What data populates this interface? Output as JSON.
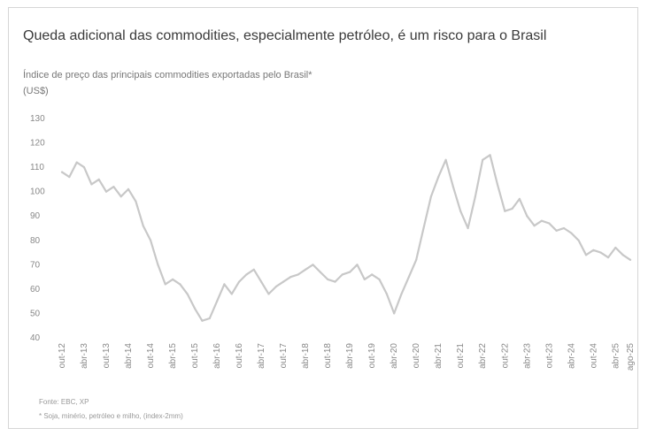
{
  "chart_data": {
    "type": "line",
    "title": "Queda adicional das commodities, especialmente petróleo, é um risco para o Brasil",
    "subtitle": "Índice de preço das principais commodities exportadas pelo Brasil*",
    "unit": "(US$)",
    "ylim": [
      40,
      130
    ],
    "yticks": [
      130,
      120,
      110,
      100,
      90,
      80,
      70,
      60,
      50,
      40
    ],
    "xlim": [
      "2012-10",
      "2025-08"
    ],
    "xticks": [
      {
        "date": "2012-10",
        "label": "out-12"
      },
      {
        "date": "2013-04",
        "label": "abr-13"
      },
      {
        "date": "2013-10",
        "label": "out-13"
      },
      {
        "date": "2014-04",
        "label": "abr-14"
      },
      {
        "date": "2014-10",
        "label": "out-14"
      },
      {
        "date": "2015-04",
        "label": "abr-15"
      },
      {
        "date": "2015-10",
        "label": "out-15"
      },
      {
        "date": "2016-04",
        "label": "abr-16"
      },
      {
        "date": "2016-10",
        "label": "out-16"
      },
      {
        "date": "2017-04",
        "label": "abr-17"
      },
      {
        "date": "2017-10",
        "label": "out-17"
      },
      {
        "date": "2018-04",
        "label": "abr-18"
      },
      {
        "date": "2018-10",
        "label": "out-18"
      },
      {
        "date": "2019-04",
        "label": "abr-19"
      },
      {
        "date": "2019-10",
        "label": "out-19"
      },
      {
        "date": "2020-04",
        "label": "abr-20"
      },
      {
        "date": "2020-10",
        "label": "out-20"
      },
      {
        "date": "2021-04",
        "label": "abr-21"
      },
      {
        "date": "2021-10",
        "label": "out-21"
      },
      {
        "date": "2022-04",
        "label": "abr-22"
      },
      {
        "date": "2022-10",
        "label": "out-22"
      },
      {
        "date": "2023-04",
        "label": "abr-23"
      },
      {
        "date": "2023-10",
        "label": "out-23"
      },
      {
        "date": "2024-04",
        "label": "abr-24"
      },
      {
        "date": "2024-10",
        "label": "out-24"
      },
      {
        "date": "2025-04",
        "label": "abr-25"
      },
      {
        "date": "2025-08",
        "label": "ago-25"
      }
    ],
    "grid": false,
    "legend": "none",
    "series": [
      {
        "color": "#c8c8c8",
        "points": [
          [
            "2012-10",
            108
          ],
          [
            "2012-12",
            106
          ],
          [
            "2013-02",
            112
          ],
          [
            "2013-04",
            110
          ],
          [
            "2013-06",
            103
          ],
          [
            "2013-08",
            105
          ],
          [
            "2013-10",
            100
          ],
          [
            "2013-12",
            102
          ],
          [
            "2014-02",
            98
          ],
          [
            "2014-04",
            101
          ],
          [
            "2014-06",
            96
          ],
          [
            "2014-08",
            86
          ],
          [
            "2014-10",
            80
          ],
          [
            "2014-12",
            70
          ],
          [
            "2015-02",
            62
          ],
          [
            "2015-04",
            64
          ],
          [
            "2015-06",
            62
          ],
          [
            "2015-08",
            58
          ],
          [
            "2015-10",
            52
          ],
          [
            "2015-12",
            47
          ],
          [
            "2016-02",
            48
          ],
          [
            "2016-04",
            55
          ],
          [
            "2016-06",
            62
          ],
          [
            "2016-08",
            58
          ],
          [
            "2016-10",
            63
          ],
          [
            "2016-12",
            66
          ],
          [
            "2017-02",
            68
          ],
          [
            "2017-04",
            63
          ],
          [
            "2017-06",
            58
          ],
          [
            "2017-08",
            61
          ],
          [
            "2017-10",
            63
          ],
          [
            "2017-12",
            65
          ],
          [
            "2018-02",
            66
          ],
          [
            "2018-04",
            68
          ],
          [
            "2018-06",
            70
          ],
          [
            "2018-08",
            67
          ],
          [
            "2018-10",
            64
          ],
          [
            "2018-12",
            63
          ],
          [
            "2019-02",
            66
          ],
          [
            "2019-04",
            67
          ],
          [
            "2019-06",
            70
          ],
          [
            "2019-08",
            64
          ],
          [
            "2019-10",
            66
          ],
          [
            "2019-12",
            64
          ],
          [
            "2020-02",
            58
          ],
          [
            "2020-04",
            50
          ],
          [
            "2020-06",
            58
          ],
          [
            "2020-08",
            65
          ],
          [
            "2020-10",
            72
          ],
          [
            "2020-12",
            85
          ],
          [
            "2021-02",
            98
          ],
          [
            "2021-04",
            106
          ],
          [
            "2021-06",
            113
          ],
          [
            "2021-08",
            102
          ],
          [
            "2021-10",
            92
          ],
          [
            "2021-12",
            85
          ],
          [
            "2022-02",
            98
          ],
          [
            "2022-04",
            113
          ],
          [
            "2022-06",
            115
          ],
          [
            "2022-08",
            103
          ],
          [
            "2022-10",
            92
          ],
          [
            "2022-12",
            93
          ],
          [
            "2023-02",
            97
          ],
          [
            "2023-04",
            90
          ],
          [
            "2023-06",
            86
          ],
          [
            "2023-08",
            88
          ],
          [
            "2023-10",
            87
          ],
          [
            "2023-12",
            84
          ],
          [
            "2024-02",
            85
          ],
          [
            "2024-04",
            83
          ],
          [
            "2024-06",
            80
          ],
          [
            "2024-08",
            74
          ],
          [
            "2024-10",
            76
          ],
          [
            "2024-12",
            75
          ],
          [
            "2025-02",
            73
          ],
          [
            "2025-04",
            77
          ],
          [
            "2025-06",
            74
          ],
          [
            "2025-08",
            72
          ]
        ]
      }
    ]
  },
  "footer": {
    "source": "Fonte: EBC, XP",
    "note": "* Soja, minério, petróleo e milho, (index-2mm)"
  }
}
